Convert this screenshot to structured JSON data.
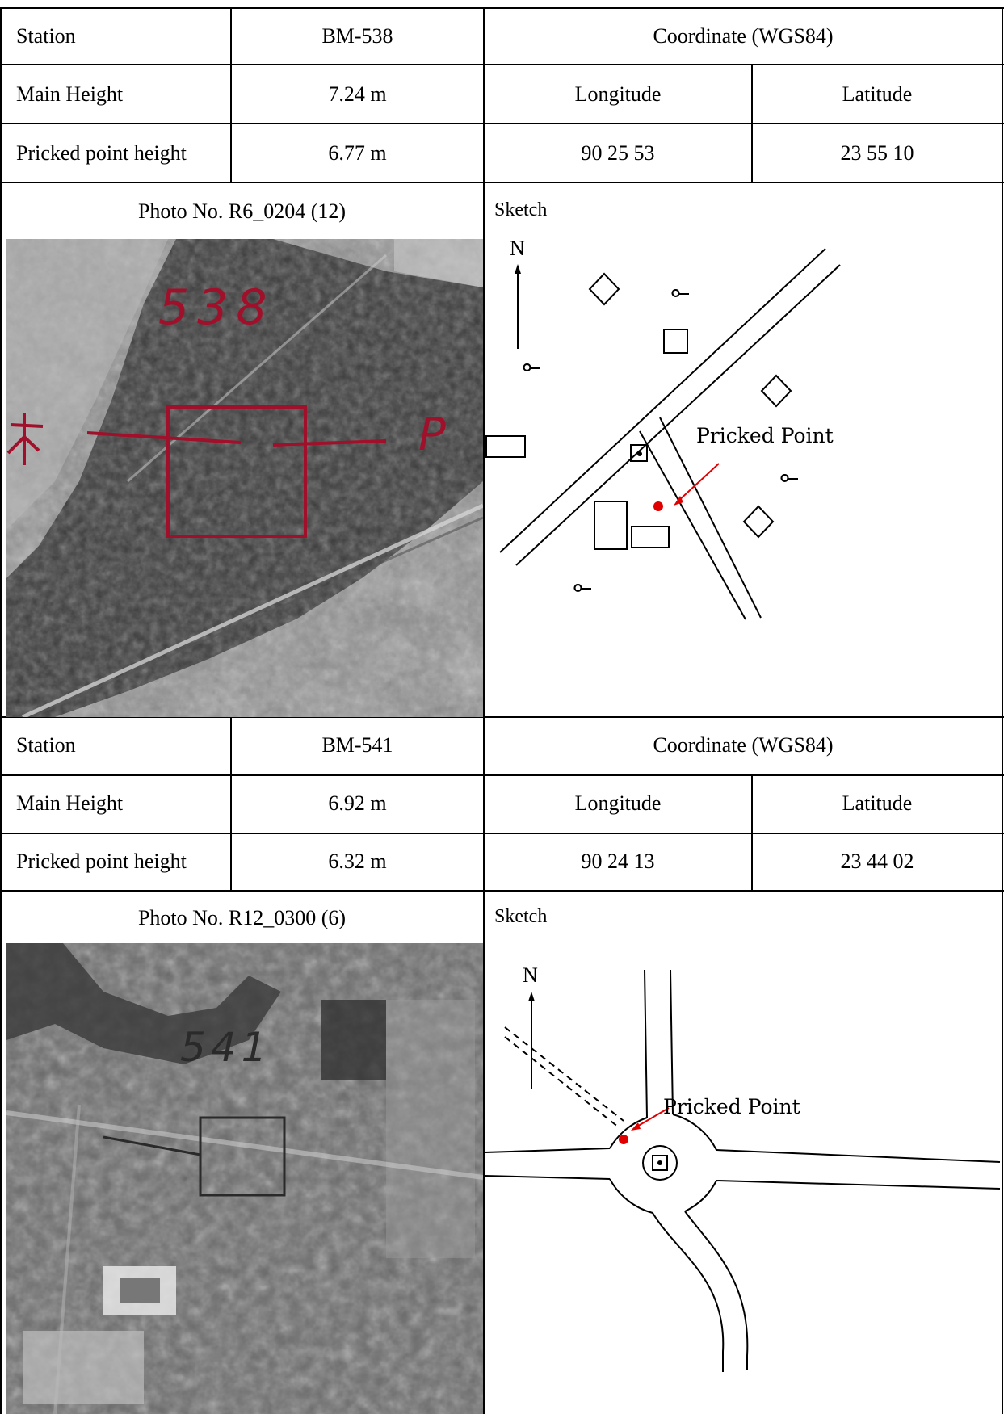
{
  "records": [
    {
      "station_label": "Station",
      "station_value": "BM-538",
      "coordinate_label": "Coordinate  (WGS84)",
      "main_height_label": "Main Height",
      "main_height_value": "7.24 m",
      "longitude_label": "Longitude",
      "latitude_label": "Latitude",
      "pricked_label": "Pricked point height",
      "pricked_value": "6.77 m",
      "longitude_value": "90 25 53",
      "latitude_value": "23 55 10",
      "photo_label": "Photo No.  R6_0204 (12)",
      "photo_annotation": "538",
      "photo_marker": "P",
      "sketch_label": "Sketch",
      "north_label": "N",
      "pricked_point_label": "Pricked Point"
    },
    {
      "station_label": "Station",
      "station_value": "BM-541",
      "coordinate_label": "Coordinate  (WGS84)",
      "main_height_label": "Main Height",
      "main_height_value": "6.92 m",
      "longitude_label": "Longitude",
      "latitude_label": "Latitude",
      "pricked_label": "Pricked point height",
      "pricked_value": "6.32 m",
      "longitude_value": "90 24 13",
      "latitude_value": "23 44 02",
      "photo_label": "Photo No. R12_0300 (6)",
      "photo_annotation": "541",
      "sketch_label": "Sketch",
      "north_label": "N",
      "pricked_point_label": "Pricked Point"
    }
  ],
  "colors": {
    "grid_line": "#000000",
    "marker_red": "#e00000",
    "annotation_red": "#a0102a"
  }
}
